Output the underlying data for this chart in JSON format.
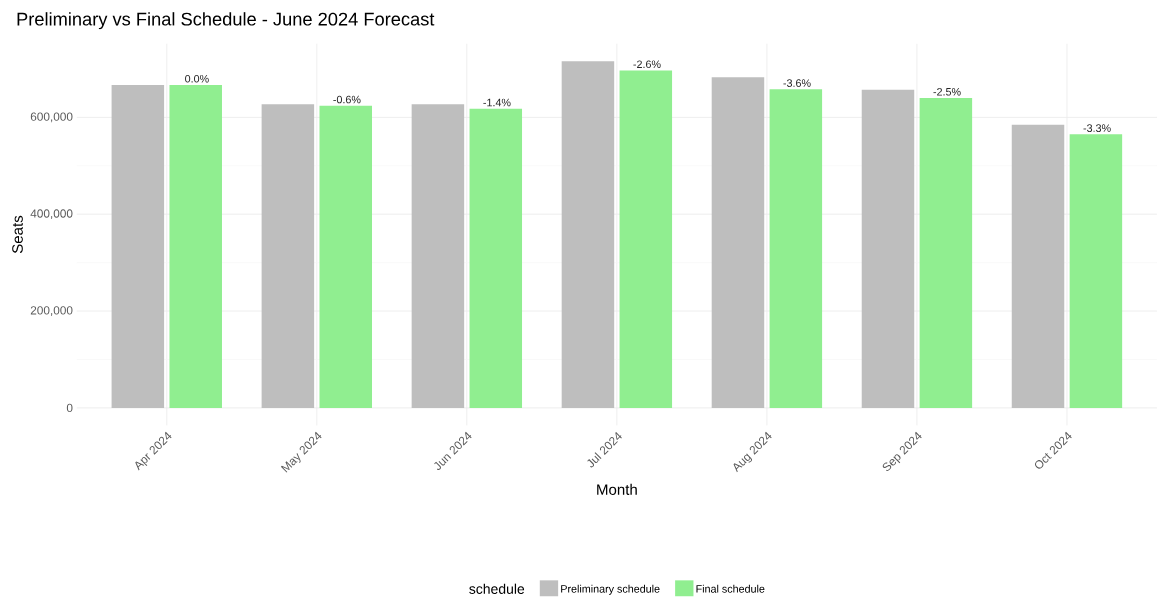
{
  "chart_data": {
    "type": "bar",
    "title": "Preliminary vs Final Schedule - June 2024 Forecast",
    "xlabel": "Month",
    "ylabel": "Seats",
    "legend_title": "schedule",
    "categories": [
      "Apr 2024",
      "May 2024",
      "Jun 2024",
      "Jul 2024",
      "Aug 2024",
      "Sep 2024",
      "Oct 2024"
    ],
    "series": [
      {
        "name": "Preliminary schedule",
        "color": "#bebebe",
        "values": [
          667000,
          627000,
          627000,
          716000,
          683000,
          657000,
          585000
        ]
      },
      {
        "name": "Final schedule",
        "color": "#90ee90",
        "values": [
          667000,
          624000,
          618000,
          697000,
          658000,
          640000,
          565000
        ]
      }
    ],
    "annotations": [
      {
        "text": "0.0%",
        "x": "Apr 2024",
        "y": 667000
      },
      {
        "text": "-0.6%",
        "x": "May 2024",
        "y": 624000
      },
      {
        "text": "-1.4%",
        "x": "Jun 2024",
        "y": 618000
      },
      {
        "text": "-2.6%",
        "x": "Jul 2024",
        "y": 697000
      },
      {
        "text": "-3.6%",
        "x": "Aug 2024",
        "y": 658000
      },
      {
        "text": "-2.5%",
        "x": "Sep 2024",
        "y": 640000
      },
      {
        "text": "-3.3%",
        "x": "Oct 2024",
        "y": 565000
      }
    ],
    "ylim": [
      -36000,
      752000
    ],
    "yticks": [
      0,
      {
        "value": 200000,
        "label": "200,000"
      },
      {
        "value": 400000,
        "label": "400,000"
      },
      {
        "value": 600000,
        "label": "600,000"
      }
    ],
    "grid": true,
    "legend": "bottom"
  }
}
